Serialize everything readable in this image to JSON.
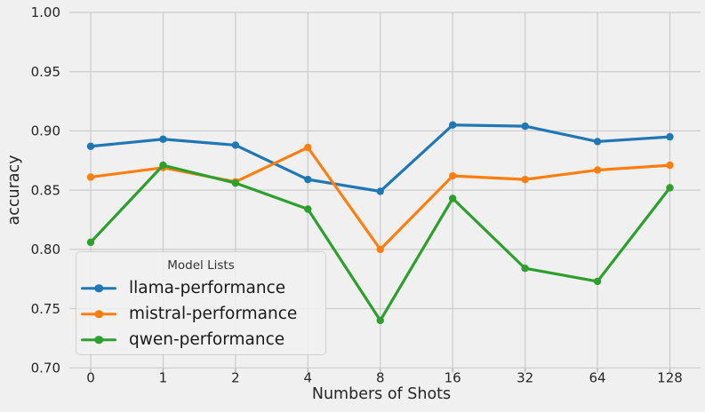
{
  "chart_data": {
    "type": "line",
    "title": "",
    "xlabel": "Numbers of Shots",
    "ylabel": "accuracy",
    "x_categories": [
      "0",
      "1",
      "2",
      "4",
      "8",
      "16",
      "32",
      "64",
      "128"
    ],
    "series": [
      {
        "name": "llama-performance",
        "color": "#1f77b4",
        "values": [
          0.887,
          0.893,
          0.888,
          0.859,
          0.849,
          0.905,
          0.904,
          0.891,
          0.895
        ]
      },
      {
        "name": "mistral-performance",
        "color": "#ff7f0e",
        "values": [
          0.861,
          0.869,
          0.857,
          0.886,
          0.8,
          0.862,
          0.859,
          0.867,
          0.871
        ]
      },
      {
        "name": "qwen-performance",
        "color": "#2ca02c",
        "values": [
          0.806,
          0.871,
          0.856,
          0.834,
          0.74,
          0.843,
          0.784,
          0.773,
          0.852
        ]
      }
    ],
    "ylim": [
      0.7,
      1.0
    ],
    "yticks": [
      1.0,
      0.95,
      0.9,
      0.85,
      0.8,
      0.75,
      0.7
    ],
    "ytick_labels": [
      "1.00",
      "0.95",
      "0.90",
      "0.85",
      "0.80",
      "0.75",
      "0.70"
    ],
    "grid": true,
    "legend": {
      "title": "Model Lists",
      "location": "lower left"
    }
  },
  "style": {
    "background": "#f0f0f0",
    "grid_color": "#cbcbcb",
    "tick_mark_color": "#aaaaaa",
    "tick_label_color": "#262626",
    "axis_label_color": "#262626",
    "legend_text_color": "#1a1a1a",
    "legend_border_color": "#d0d0d0"
  }
}
